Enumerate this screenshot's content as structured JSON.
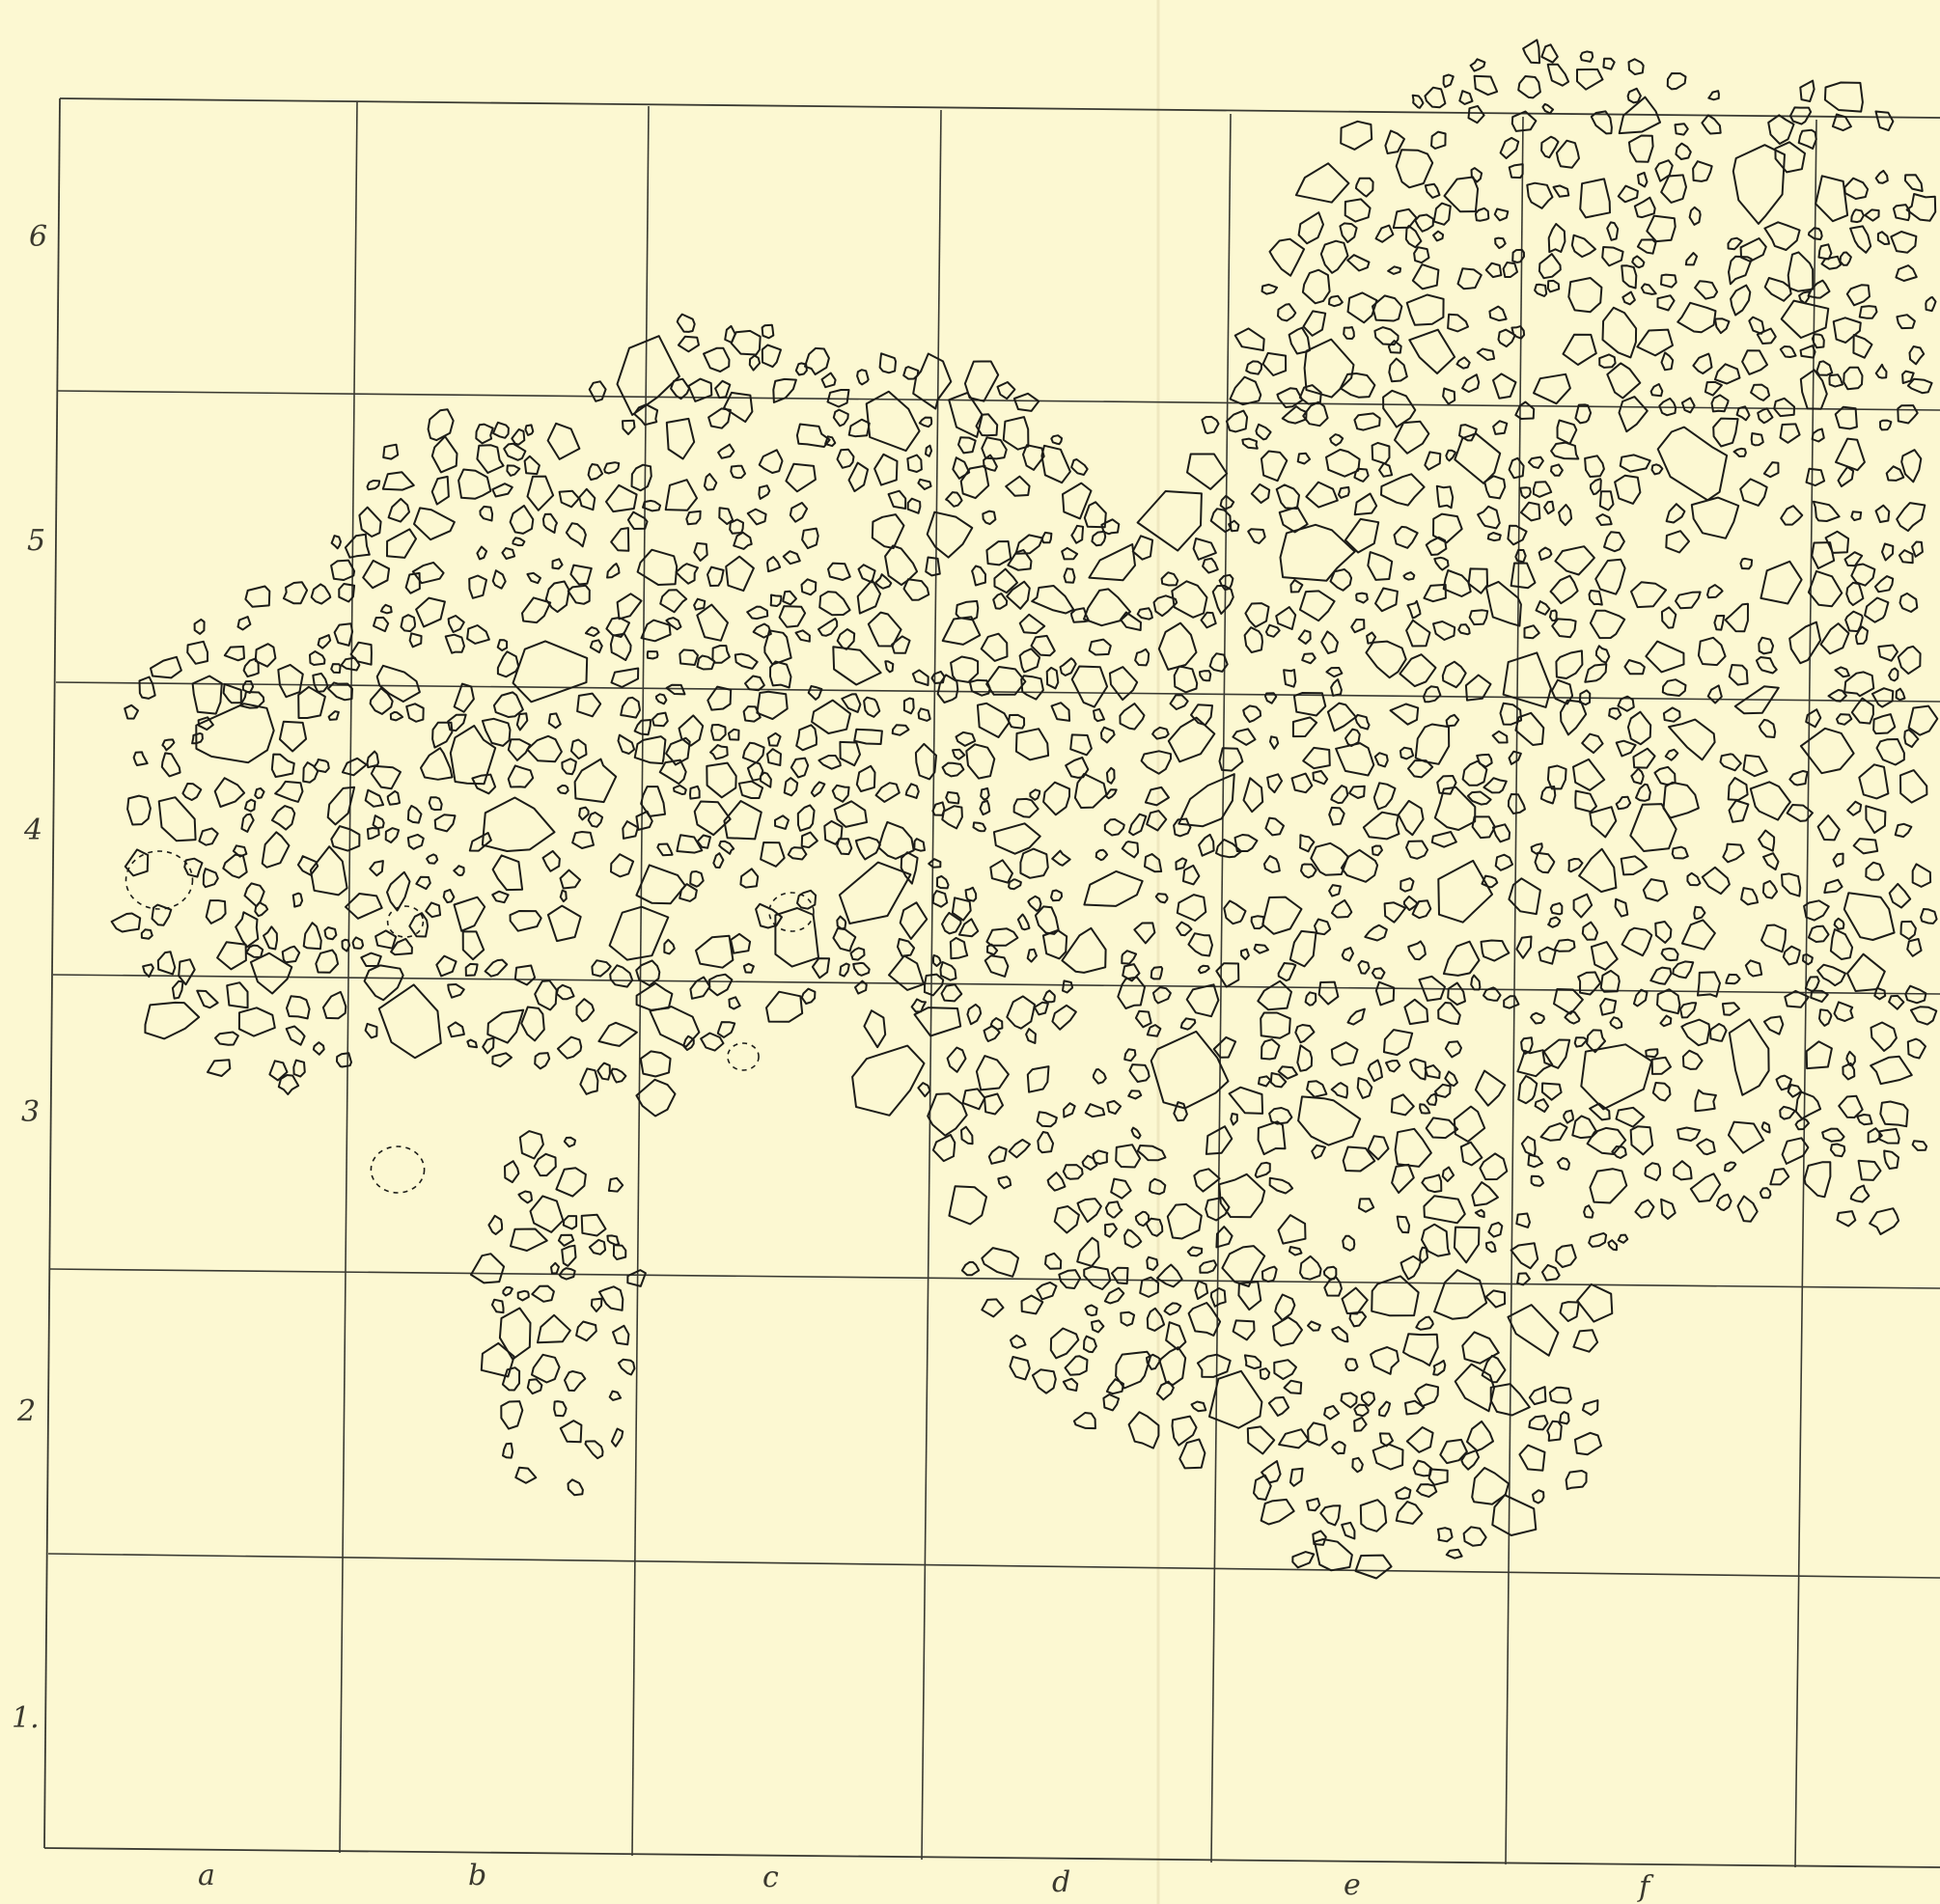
{
  "sheet": {
    "background_color": "#fcf8d2",
    "ink_color": "#1c1c18"
  },
  "column_labels": [
    "a",
    "b",
    "c",
    "d",
    "e",
    "f"
  ],
  "row_labels": [
    "6",
    "5",
    "4",
    "3",
    "2",
    "1."
  ]
}
